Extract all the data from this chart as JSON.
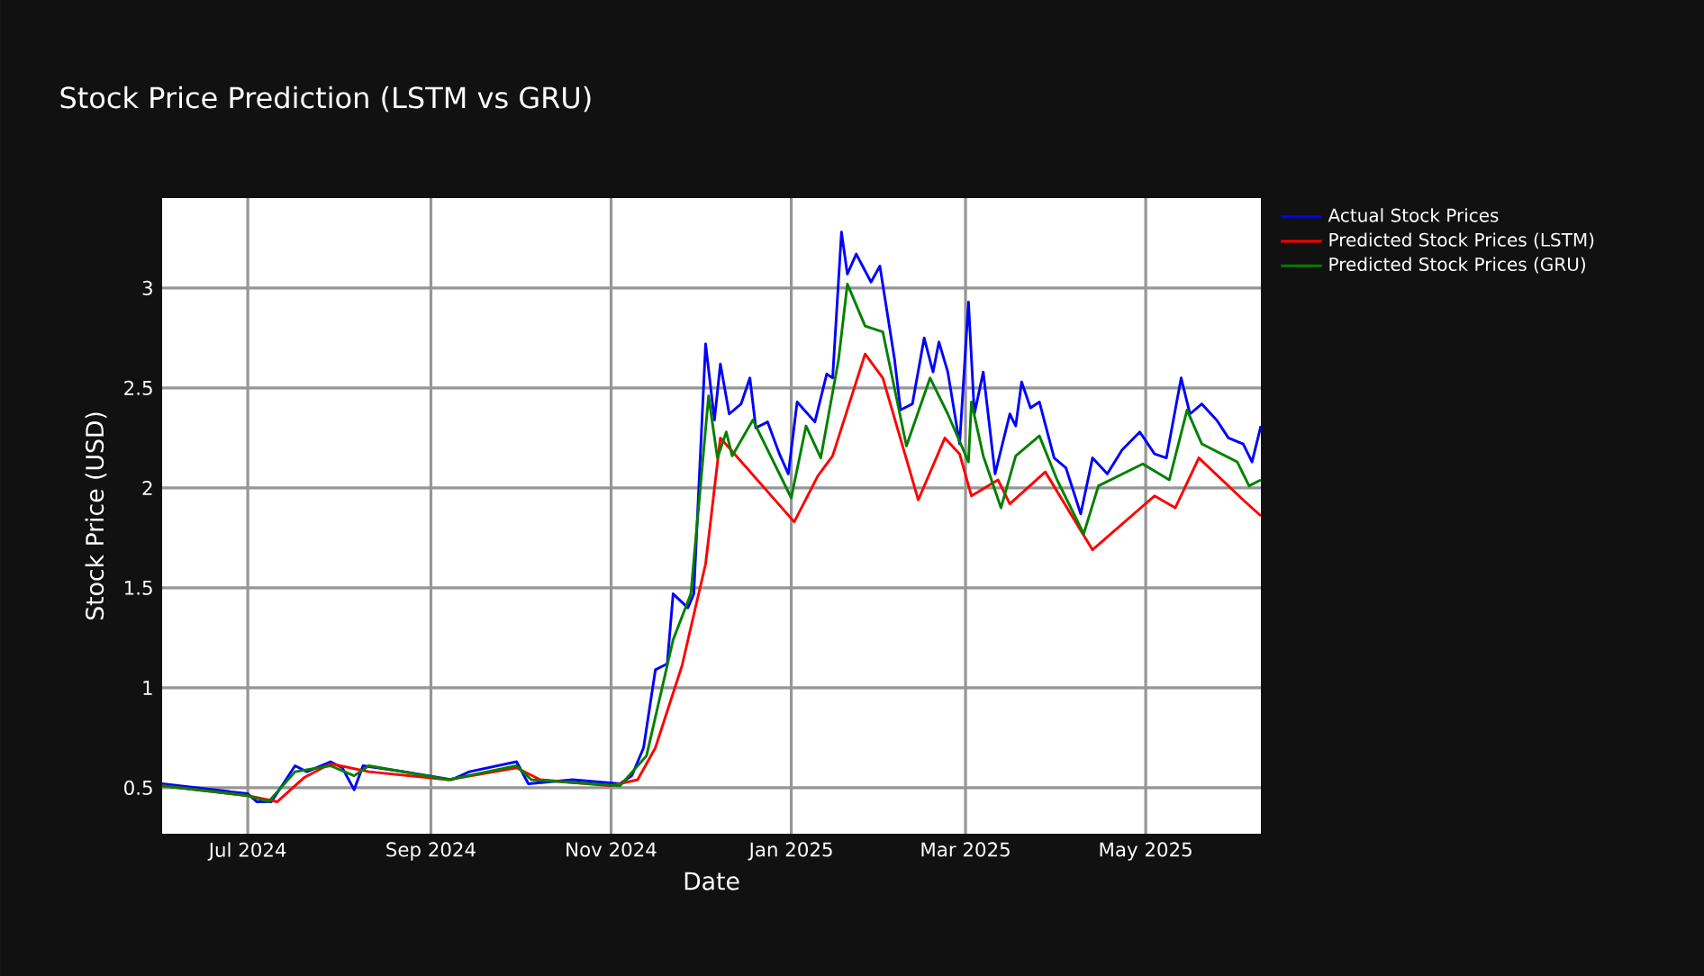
{
  "chart_data": {
    "type": "line",
    "title": "Stock Price Prediction (LSTM vs GRU)",
    "xlabel": "Date",
    "ylabel": "Stock Price (USD)",
    "xlim": [
      "2024-06-02",
      "2025-06-09"
    ],
    "xticks": [
      {
        "value": "2024-07-01",
        "label": "Jul 2024"
      },
      {
        "value": "2024-09-01",
        "label": "Sep 2024"
      },
      {
        "value": "2024-11-01",
        "label": "Nov 2024"
      },
      {
        "value": "2025-01-01",
        "label": "Jan 2025"
      },
      {
        "value": "2025-03-01",
        "label": "Mar 2025"
      },
      {
        "value": "2025-05-01",
        "label": "May 2025"
      }
    ],
    "ylim": [
      0.27,
      3.45
    ],
    "yticks": [
      0.5,
      1,
      1.5,
      2,
      2.5,
      3
    ],
    "grid": true,
    "legend": "right",
    "series": [
      {
        "name": "Actual Stock Prices",
        "color": "#0000ff",
        "x": [
          "2024-06-02",
          "2024-07-01",
          "2024-07-04",
          "2024-07-09",
          "2024-07-17",
          "2024-07-21",
          "2024-07-29",
          "2024-08-02",
          "2024-08-06",
          "2024-08-09",
          "2024-08-23",
          "2024-09-08",
          "2024-09-14",
          "2024-09-30",
          "2024-10-04",
          "2024-10-19",
          "2024-11-04",
          "2024-11-08",
          "2024-11-12",
          "2024-11-16",
          "2024-11-20",
          "2024-11-22",
          "2024-11-27",
          "2024-11-29",
          "2024-12-03",
          "2024-12-06",
          "2024-12-08",
          "2024-12-11",
          "2024-12-15",
          "2024-12-18",
          "2024-12-20",
          "2024-12-24",
          "2024-12-28",
          "2024-12-31",
          "2025-01-03",
          "2025-01-09",
          "2025-01-13",
          "2025-01-15",
          "2025-01-18",
          "2025-01-20",
          "2025-01-23",
          "2025-01-28",
          "2025-01-31",
          "2025-02-05",
          "2025-02-07",
          "2025-02-11",
          "2025-02-15",
          "2025-02-18",
          "2025-02-20",
          "2025-02-23",
          "2025-02-27",
          "2025-03-02",
          "2025-03-04",
          "2025-03-07",
          "2025-03-11",
          "2025-03-16",
          "2025-03-18",
          "2025-03-20",
          "2025-03-23",
          "2025-03-26",
          "2025-03-31",
          "2025-04-04",
          "2025-04-09",
          "2025-04-13",
          "2025-04-18",
          "2025-04-23",
          "2025-04-29",
          "2025-05-04",
          "2025-05-08",
          "2025-05-13",
          "2025-05-16",
          "2025-05-20",
          "2025-05-25",
          "2025-05-29",
          "2025-06-03",
          "2025-06-06",
          "2025-06-09"
        ],
        "values": [
          0.52,
          0.47,
          0.43,
          0.43,
          0.61,
          0.58,
          0.63,
          0.6,
          0.49,
          0.61,
          0.58,
          0.54,
          0.58,
          0.63,
          0.52,
          0.54,
          0.52,
          0.56,
          0.7,
          1.09,
          1.12,
          1.47,
          1.4,
          1.47,
          2.72,
          2.34,
          2.62,
          2.37,
          2.42,
          2.55,
          2.3,
          2.33,
          2.17,
          2.07,
          2.43,
          2.33,
          2.57,
          2.55,
          3.28,
          3.07,
          3.17,
          3.03,
          3.11,
          2.64,
          2.39,
          2.42,
          2.75,
          2.58,
          2.73,
          2.58,
          2.22,
          2.93,
          2.37,
          2.58,
          2.07,
          2.37,
          2.31,
          2.53,
          2.4,
          2.43,
          2.15,
          2.1,
          1.87,
          2.15,
          2.07,
          2.19,
          2.28,
          2.17,
          2.15,
          2.55,
          2.37,
          2.42,
          2.34,
          2.25,
          2.22,
          2.13,
          2.31
        ]
      },
      {
        "name": "Predicted Stock Prices (LSTM)",
        "color": "#ff0000",
        "x": [
          "2024-06-02",
          "2024-07-01",
          "2024-07-11",
          "2024-07-20",
          "2024-07-29",
          "2024-08-11",
          "2024-09-07",
          "2024-09-30",
          "2024-10-08",
          "2024-11-01",
          "2024-11-10",
          "2024-11-16",
          "2024-11-25",
          "2024-12-03",
          "2024-12-08",
          "2025-01-02",
          "2025-01-10",
          "2025-01-15",
          "2025-01-26",
          "2025-02-01",
          "2025-02-13",
          "2025-02-22",
          "2025-02-27",
          "2025-03-03",
          "2025-03-12",
          "2025-03-16",
          "2025-03-28",
          "2025-04-13",
          "2025-05-04",
          "2025-05-11",
          "2025-05-19",
          "2025-06-03",
          "2025-06-09"
        ],
        "values": [
          0.51,
          0.46,
          0.43,
          0.55,
          0.62,
          0.58,
          0.54,
          0.6,
          0.54,
          0.51,
          0.54,
          0.7,
          1.11,
          1.62,
          2.25,
          1.83,
          2.06,
          2.16,
          2.67,
          2.55,
          1.94,
          2.25,
          2.17,
          1.96,
          2.04,
          1.92,
          2.08,
          1.69,
          1.96,
          1.9,
          2.15,
          1.94,
          1.86
        ]
      },
      {
        "name": "Predicted Stock Prices (GRU)",
        "color": "#008000",
        "x": [
          "2024-06-02",
          "2024-07-01",
          "2024-07-08",
          "2024-07-17",
          "2024-07-29",
          "2024-08-06",
          "2024-08-11",
          "2024-09-07",
          "2024-09-30",
          "2024-10-05",
          "2024-11-04",
          "2024-11-13",
          "2024-11-22",
          "2024-11-28",
          "2024-12-04",
          "2024-12-07",
          "2024-12-10",
          "2024-12-12",
          "2024-12-19",
          "2025-01-01",
          "2025-01-06",
          "2025-01-11",
          "2025-01-17",
          "2025-01-20",
          "2025-01-26",
          "2025-02-01",
          "2025-02-09",
          "2025-02-17",
          "2025-02-23",
          "2025-03-02",
          "2025-03-03",
          "2025-03-07",
          "2025-03-13",
          "2025-03-18",
          "2025-03-26",
          "2025-04-01",
          "2025-04-10",
          "2025-04-15",
          "2025-04-30",
          "2025-05-09",
          "2025-05-15",
          "2025-05-20",
          "2025-06-01",
          "2025-06-05",
          "2025-06-09"
        ],
        "values": [
          0.51,
          0.46,
          0.43,
          0.58,
          0.61,
          0.56,
          0.61,
          0.54,
          0.61,
          0.54,
          0.51,
          0.66,
          1.24,
          1.47,
          2.46,
          2.15,
          2.28,
          2.16,
          2.34,
          1.95,
          2.31,
          2.15,
          2.64,
          3.02,
          2.81,
          2.78,
          2.21,
          2.55,
          2.37,
          2.13,
          2.43,
          2.16,
          1.9,
          2.16,
          2.26,
          2.04,
          1.77,
          2.01,
          2.12,
          2.04,
          2.39,
          2.22,
          2.13,
          2.01,
          2.04
        ]
      }
    ]
  }
}
